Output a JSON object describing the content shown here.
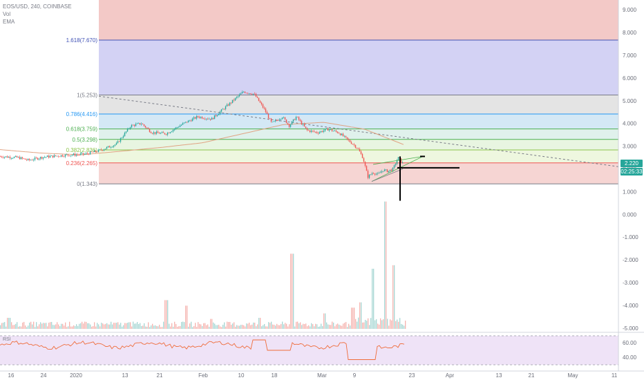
{
  "legend": {
    "symbol_line": "EOS/USD, 240, COINBASE",
    "vol_label": "Vol",
    "ema_label": "EMA"
  },
  "rsi": {
    "label": "RSI",
    "levels": [
      "60.00",
      "40.00"
    ]
  },
  "price_tag": {
    "value": "2.220",
    "countdown": "02:25:33"
  },
  "colors": {
    "up": "#26a69a",
    "down": "#ef5350",
    "ema": "#e0a383",
    "fib_text_blue": "#3f51b5",
    "fib_text_green": "#4caf50"
  },
  "fib_levels": [
    {
      "label": "1.618(7.670)",
      "price": 7.67,
      "color": "#3f51b5"
    },
    {
      "label": "1(5.253)",
      "price": 5.253,
      "color": "#787b86"
    },
    {
      "label": "0.786(4.416)",
      "price": 4.416,
      "color": "#2196f3"
    },
    {
      "label": "0.618(3.759)",
      "price": 3.759,
      "color": "#4caf50"
    },
    {
      "label": "0.5(3.298)",
      "price": 3.298,
      "color": "#4caf50"
    },
    {
      "label": "0.382(2.836)",
      "price": 2.836,
      "color": "#8bc34a"
    },
    {
      "label": "0.236(2.265)",
      "price": 2.265,
      "color": "#ef5350"
    },
    {
      "label": "0(1.343)",
      "price": 1.343,
      "color": "#787b86"
    }
  ],
  "chart_data": {
    "type": "candlestick",
    "y_axis": {
      "ticks": [
        "9.000",
        "8.000",
        "7.000",
        "6.000",
        "5.000",
        "4.000",
        "3.000",
        "2.000",
        "1.000",
        "0.000",
        "-1.000",
        "-2.000",
        "-3.000",
        "-4.000",
        "-5.000"
      ],
      "ylim": [
        -5,
        9.4
      ]
    },
    "x_axis": {
      "ticks": [
        "16",
        "24",
        "2020",
        "13",
        "21",
        "Feb",
        "10",
        "18",
        "Mar",
        "9",
        "23",
        "Apr",
        "13",
        "21",
        "May",
        "11"
      ]
    },
    "price_path": [
      {
        "t": 0,
        "p": 2.55
      },
      {
        "t": 0.05,
        "p": 2.5
      },
      {
        "t": 0.08,
        "p": 2.38
      },
      {
        "t": 0.12,
        "p": 2.52
      },
      {
        "t": 0.18,
        "p": 2.6
      },
      {
        "t": 0.24,
        "p": 2.65
      },
      {
        "t": 0.28,
        "p": 2.8
      },
      {
        "t": 0.33,
        "p": 3.1
      },
      {
        "t": 0.37,
        "p": 3.9
      },
      {
        "t": 0.4,
        "p": 4.0
      },
      {
        "t": 0.43,
        "p": 3.6
      },
      {
        "t": 0.47,
        "p": 3.55
      },
      {
        "t": 0.52,
        "p": 4.0
      },
      {
        "t": 0.56,
        "p": 4.3
      },
      {
        "t": 0.6,
        "p": 4.2
      },
      {
        "t": 0.63,
        "p": 4.6
      },
      {
        "t": 0.66,
        "p": 5.0
      },
      {
        "t": 0.69,
        "p": 5.4
      },
      {
        "t": 0.72,
        "p": 5.3
      },
      {
        "t": 0.75,
        "p": 4.6
      },
      {
        "t": 0.77,
        "p": 4.0
      },
      {
        "t": 0.8,
        "p": 4.3
      },
      {
        "t": 0.82,
        "p": 3.9
      },
      {
        "t": 0.84,
        "p": 4.3
      },
      {
        "t": 0.87,
        "p": 3.7
      },
      {
        "t": 0.9,
        "p": 3.6
      },
      {
        "t": 0.93,
        "p": 3.75
      },
      {
        "t": 0.96,
        "p": 3.6
      },
      {
        "t": 1.0,
        "p": 3.1
      }
    ],
    "crash_path": [
      {
        "t": 0,
        "p": 3.1
      },
      {
        "t": 0.1,
        "p": 2.9
      },
      {
        "t": 0.2,
        "p": 2.5
      },
      {
        "t": 0.3,
        "p": 1.65
      },
      {
        "t": 0.4,
        "p": 1.85
      },
      {
        "t": 0.5,
        "p": 1.75
      },
      {
        "t": 0.6,
        "p": 1.95
      },
      {
        "t": 0.7,
        "p": 1.9
      },
      {
        "t": 0.8,
        "p": 2.0
      },
      {
        "t": 0.9,
        "p": 2.5
      },
      {
        "t": 1.0,
        "p": 2.22
      }
    ],
    "ema_path": [
      {
        "t": 0,
        "p": 2.85
      },
      {
        "t": 0.1,
        "p": 2.7
      },
      {
        "t": 0.2,
        "p": 2.62
      },
      {
        "t": 0.3,
        "p": 2.78
      },
      {
        "t": 0.4,
        "p": 2.95
      },
      {
        "t": 0.5,
        "p": 3.15
      },
      {
        "t": 0.6,
        "p": 3.55
      },
      {
        "t": 0.7,
        "p": 3.95
      },
      {
        "t": 0.8,
        "p": 4.05
      },
      {
        "t": 0.9,
        "p": 3.75
      },
      {
        "t": 1.0,
        "p": 3.05
      }
    ],
    "volume_spikes": [
      {
        "t": 0.02,
        "v": 0.5
      },
      {
        "t": 0.32,
        "v": 0.3
      },
      {
        "t": 0.41,
        "v": 1.3
      },
      {
        "t": 0.46,
        "v": 1.05
      },
      {
        "t": 0.52,
        "v": 0.45
      },
      {
        "t": 0.64,
        "v": 0.5
      },
      {
        "t": 0.72,
        "v": 3.4
      },
      {
        "t": 0.8,
        "v": 0.7
      },
      {
        "t": 0.87,
        "v": 0.6
      },
      {
        "t": 0.89,
        "v": 0.75
      },
      {
        "t": 0.92,
        "v": 1.7
      },
      {
        "t": 0.95,
        "v": 3.6
      },
      {
        "t": 0.97,
        "v": 1.8
      }
    ]
  }
}
